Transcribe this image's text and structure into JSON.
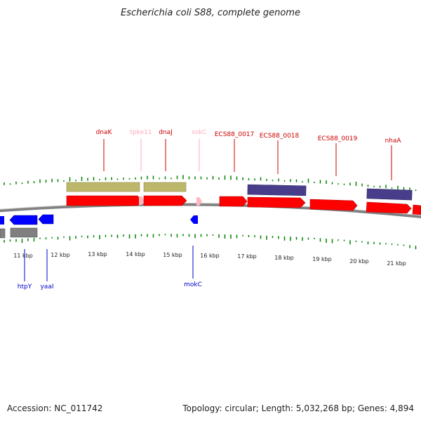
{
  "title": "Escherichia coli S88, complete genome",
  "accession": "Accession: NC_011742",
  "summary": "Topology: circular; Length: 5,032,268 bp; Genes: 4,894",
  "colors": {
    "forward_gene": "#ff0000",
    "reverse_gene": "#0000ff",
    "rna_gene": "#ffb6c1",
    "cds_khaki": "#bdb76b",
    "cds_slate": "#483d8b",
    "cds_gray": "#808080",
    "backbone": "#808080",
    "gc_ticks": "#008000",
    "label_forward": "#cc0000",
    "label_reverse": "#0000cc",
    "label_rna": "#ffaac0"
  },
  "scale_ticks": [
    "11 kbp",
    "12 kbp",
    "13 kbp",
    "14 kbp",
    "15 kbp",
    "16 kbp",
    "17 kbp",
    "18 kbp",
    "19 kbp",
    "20 kbp",
    "21 kbp"
  ],
  "forward_labels": [
    "dnaK",
    "tpke11",
    "dnaJ",
    "sokC",
    "ECS88_0017",
    "ECS88_0018",
    "ECS88_0019",
    "nhaA"
  ],
  "reverse_labels": [
    "htpY",
    "yaaI",
    "mokC"
  ]
}
